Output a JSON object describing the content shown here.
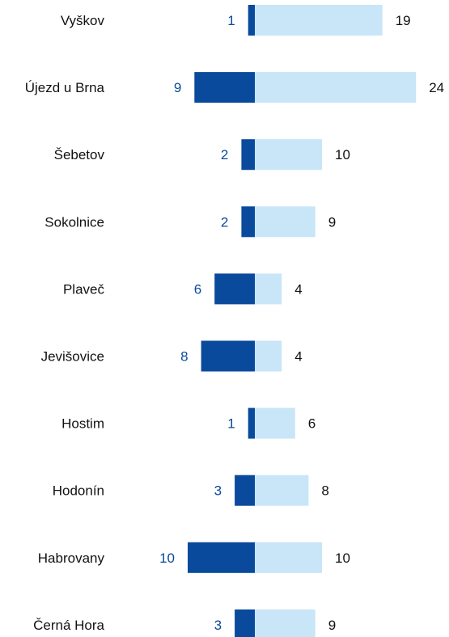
{
  "chart_data": {
    "type": "bar",
    "orientation": "horizontal-diverging",
    "categories": [
      "Vyškov",
      "Újezd u Brna",
      "Šebetov",
      "Sokolnice",
      "Plaveč",
      "Jevišovice",
      "Hostim",
      "Hodonín",
      "Habrovany",
      "Černá Hora"
    ],
    "series": [
      {
        "values": [
          1,
          9,
          2,
          2,
          6,
          8,
          1,
          3,
          10,
          3
        ],
        "color": "#0a4a9c",
        "side": "left"
      },
      {
        "values": [
          19,
          24,
          10,
          9,
          4,
          4,
          6,
          8,
          10,
          9
        ],
        "color": "#c8e6f8",
        "side": "right"
      }
    ],
    "title": "",
    "xlabel": "",
    "ylabel": "",
    "grid": false,
    "legend": "none"
  }
}
